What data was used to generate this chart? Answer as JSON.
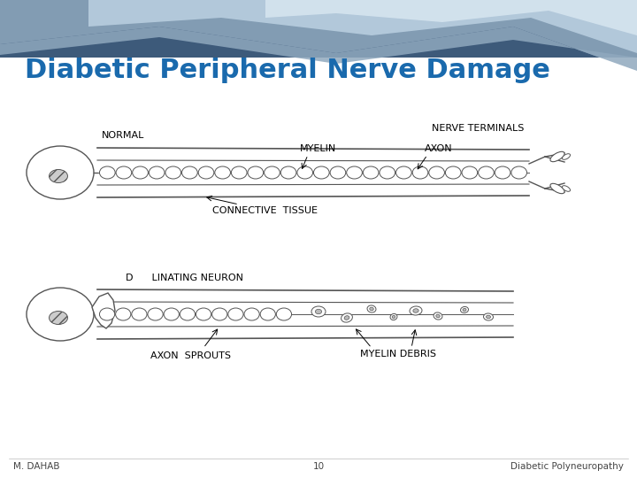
{
  "title": "Diabetic Peripheral Nerve Damage",
  "title_color": "#1a6aad",
  "title_fontsize": 22,
  "footer_left": "M. DAHAB",
  "footer_center": "10",
  "footer_right": "Diabetic Polyneuropathy",
  "footer_fontsize": 7.5,
  "bg_color": "#ffffff",
  "label_normal": "NORMAL",
  "label_nerve_terminals": "NERVE TERMINALS",
  "label_myelin": "MYELIN",
  "label_axon": "AXON",
  "label_connective": "CONNECTIVE  TISSUE",
  "label_demyelinating": "D      LINATING NEURON",
  "label_axon_sprouts": "AXON  SPROUTS",
  "label_myelin_debris": "MYELIN DEBRIS",
  "label_fontsize": 7.5
}
